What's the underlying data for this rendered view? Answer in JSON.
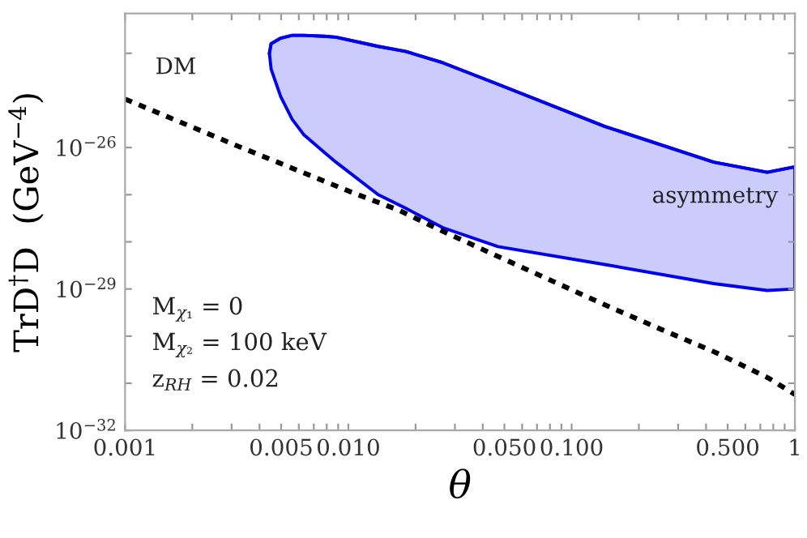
{
  "chart_data": {
    "type": "line",
    "xlabel": "θ",
    "ylabel": "TrD$^{†}$D  (GeV$^{−4}$)",
    "log": "xy",
    "grid": false,
    "legend": false,
    "xlim": [
      0.001,
      1
    ],
    "ylim": [
      1e-32,
      7e-24
    ],
    "xticks": [
      {
        "value": 0.001,
        "label": "0.001"
      },
      {
        "value": 0.002,
        "label": null
      },
      {
        "value": 0.003,
        "label": null
      },
      {
        "value": 0.004,
        "label": null
      },
      {
        "value": 0.005,
        "label": "0.005"
      },
      {
        "value": 0.006,
        "label": null
      },
      {
        "value": 0.007,
        "label": null
      },
      {
        "value": 0.008,
        "label": null
      },
      {
        "value": 0.009,
        "label": null
      },
      {
        "value": 0.01,
        "label": "0.010"
      },
      {
        "value": 0.02,
        "label": null
      },
      {
        "value": 0.03,
        "label": null
      },
      {
        "value": 0.04,
        "label": null
      },
      {
        "value": 0.05,
        "label": "0.050"
      },
      {
        "value": 0.06,
        "label": null
      },
      {
        "value": 0.07,
        "label": null
      },
      {
        "value": 0.08,
        "label": null
      },
      {
        "value": 0.09,
        "label": null
      },
      {
        "value": 0.1,
        "label": "0.100"
      },
      {
        "value": 0.2,
        "label": null
      },
      {
        "value": 0.3,
        "label": null
      },
      {
        "value": 0.4,
        "label": null
      },
      {
        "value": 0.5,
        "label": "0.500"
      },
      {
        "value": 0.6,
        "label": null
      },
      {
        "value": 0.7,
        "label": null
      },
      {
        "value": 0.8,
        "label": null
      },
      {
        "value": 0.9,
        "label": null
      },
      {
        "value": 1,
        "label": "1"
      }
    ],
    "yticks": [
      {
        "value": 1e-32,
        "label": "10$^{−32}$"
      },
      {
        "value": 1e-31,
        "label": null
      },
      {
        "value": 1e-30,
        "label": null
      },
      {
        "value": 1e-29,
        "label": "10$^{−29}$"
      },
      {
        "value": 1e-28,
        "label": null
      },
      {
        "value": 1e-27,
        "label": null
      },
      {
        "value": 1e-26,
        "label": "10$^{−26}$"
      },
      {
        "value": 1e-25,
        "label": null
      },
      {
        "value": 1e-24,
        "label": null
      }
    ],
    "series": [
      {
        "type": "line",
        "color": "#0000ee",
        "x": [
          0.00443,
          0.00451,
          0.00498,
          0.0056,
          0.0063,
          0.0078,
          0.0088,
          0.0136,
          0.018,
          0.0265,
          0.0468,
          0.141,
          0.433,
          0.752,
          1
        ],
        "values": [
          1e-24,
          1.6e-24,
          2.1e-24,
          2.4e-24,
          2.4e-24,
          2.3e-24,
          2.2e-24,
          1.4e-24,
          1.1e-24,
          6.3e-25,
          2.2e-25,
          2.8e-26,
          4.9e-27,
          3e-27,
          3.9e-27
        ],
        "lower": [
          1e-24,
          4.6e-25,
          1.2e-25,
          4e-26,
          1.9e-26,
          7.9e-27,
          4.9e-27,
          1e-27,
          5.2e-28,
          2e-28,
          7.9e-29,
          3.3e-29,
          1.3e-29,
          9.3e-30,
          1e-29
        ],
        "upper": [
          1e-24,
          1.6e-24,
          2.1e-24,
          2.4e-24,
          2.4e-24,
          2.3e-24,
          2.2e-24,
          1.4e-24,
          1.1e-24,
          6.3e-25,
          2.2e-25,
          2.8e-26,
          4.9e-27,
          3e-27,
          3.9e-27
        ]
      },
      {
        "color": "#000000",
        "line_style": "dotted",
        "x": [
          0.001,
          0.00316,
          0.01,
          0.017,
          0.0263,
          0.0468,
          0.0813,
          0.141,
          0.251,
          0.437,
          0.759,
          1
        ],
        "values": [
          1.07e-25,
          1.1e-26,
          1.2e-27,
          4.6e-28,
          1.7e-28,
          4.9e-29,
          1.5e-29,
          4.6e-30,
          1.4e-30,
          4.6e-31,
          1.3e-31,
          5.8e-32
        ]
      }
    ],
    "annotations": [
      "DM",
      "asymmetry",
      "M$_{χ₁}$ = 0",
      "M$_{χ₂}$ = 100 keV",
      "z$_{RH}$ = 0.02"
    ]
  }
}
